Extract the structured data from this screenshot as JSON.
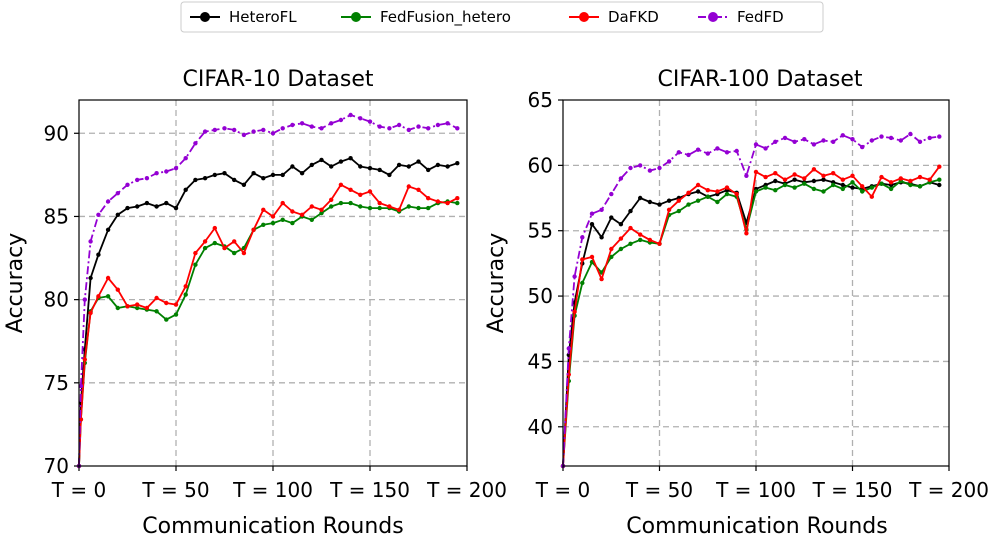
{
  "legend": [
    {
      "name": "HeteroFL",
      "color": "#000000",
      "dash": "solid"
    },
    {
      "name": "FedFusion_hetero",
      "color": "#008000",
      "dash": "solid"
    },
    {
      "name": "DaFKD",
      "color": "#ff0000",
      "dash": "solid"
    },
    {
      "name": "FedFD",
      "color": "#9400d3",
      "dash": "dashdot"
    }
  ],
  "chart_data": [
    {
      "type": "line",
      "title": "CIFAR-10 Dataset",
      "xlabel": "Communication Rounds",
      "ylabel": "Accuracy",
      "xlim": [
        0,
        200
      ],
      "ylim": [
        70,
        92
      ],
      "xticks": [
        0,
        50,
        100,
        150,
        200
      ],
      "xtick_labels": [
        "T = 0",
        "T = 50",
        "T = 100",
        "T = 150",
        "T = 200"
      ],
      "yticks": [
        70,
        75,
        80,
        85,
        90
      ],
      "ytick_labels": [
        "70",
        "75",
        "80",
        "85",
        "90"
      ],
      "grid": true,
      "x": [
        0,
        1,
        3,
        6,
        10,
        15,
        20,
        25,
        30,
        35,
        40,
        45,
        50,
        55,
        60,
        65,
        70,
        75,
        80,
        85,
        90,
        95,
        100,
        105,
        110,
        115,
        120,
        125,
        130,
        135,
        140,
        145,
        150,
        155,
        160,
        165,
        170,
        175,
        180,
        185,
        190,
        195
      ],
      "series": [
        {
          "name": "HeteroFL",
          "values": [
            70.0,
            73.8,
            77.0,
            81.3,
            82.7,
            84.2,
            85.1,
            85.5,
            85.6,
            85.8,
            85.6,
            85.8,
            85.5,
            86.6,
            87.2,
            87.3,
            87.5,
            87.6,
            87.2,
            86.9,
            87.6,
            87.3,
            87.5,
            87.5,
            88.0,
            87.6,
            88.1,
            88.4,
            88.0,
            88.3,
            88.5,
            88.0,
            87.9,
            87.8,
            87.5,
            88.1,
            88.0,
            88.3,
            87.8,
            88.1,
            88.0,
            88.2
          ]
        },
        {
          "name": "FedFusion_hetero",
          "values": [
            70.0,
            72.8,
            76.2,
            79.3,
            80.1,
            80.2,
            79.5,
            79.6,
            79.5,
            79.4,
            79.3,
            78.8,
            79.1,
            80.3,
            82.1,
            83.1,
            83.4,
            83.2,
            82.8,
            83.1,
            84.2,
            84.5,
            84.6,
            84.8,
            84.6,
            85.0,
            84.8,
            85.2,
            85.6,
            85.8,
            85.8,
            85.6,
            85.5,
            85.5,
            85.5,
            85.3,
            85.6,
            85.5,
            85.5,
            85.8,
            85.9,
            85.8
          ]
        },
        {
          "name": "DaFKD",
          "values": [
            70.0,
            72.8,
            76.4,
            79.2,
            80.2,
            81.3,
            80.6,
            79.6,
            79.7,
            79.5,
            80.1,
            79.8,
            79.7,
            80.8,
            82.8,
            83.5,
            84.3,
            83.1,
            83.5,
            82.8,
            84.2,
            85.4,
            85.0,
            85.8,
            85.3,
            85.1,
            85.6,
            85.4,
            86.0,
            86.9,
            86.6,
            86.3,
            86.5,
            85.8,
            85.6,
            85.4,
            86.8,
            86.6,
            86.1,
            85.9,
            85.8,
            86.1
          ]
        },
        {
          "name": "FedFD",
          "values": [
            70.0,
            74.8,
            80.0,
            83.5,
            85.1,
            85.9,
            86.4,
            86.9,
            87.2,
            87.3,
            87.6,
            87.7,
            87.9,
            88.5,
            89.4,
            90.1,
            90.2,
            90.3,
            90.2,
            89.9,
            90.1,
            90.2,
            90.0,
            90.3,
            90.5,
            90.6,
            90.4,
            90.3,
            90.6,
            90.8,
            91.1,
            90.9,
            90.7,
            90.4,
            90.3,
            90.5,
            90.2,
            90.4,
            90.3,
            90.5,
            90.6,
            90.3
          ]
        }
      ]
    },
    {
      "type": "line",
      "title": "CIFAR-100 Dataset",
      "xlabel": "Communication Rounds",
      "ylabel": "Accuracy",
      "xlim": [
        0,
        200
      ],
      "ylim": [
        37,
        65
      ],
      "xticks": [
        0,
        50,
        100,
        150,
        200
      ],
      "xtick_labels": [
        "T = 0",
        "T = 50",
        "T = 100",
        "T = 150",
        "T = 200"
      ],
      "yticks": [
        40,
        45,
        50,
        55,
        60,
        65
      ],
      "ytick_labels": [
        "40",
        "45",
        "50",
        "55",
        "60",
        "65"
      ],
      "grid": true,
      "x": [
        0,
        3,
        6,
        10,
        15,
        20,
        25,
        30,
        35,
        40,
        45,
        50,
        55,
        60,
        65,
        70,
        75,
        80,
        85,
        90,
        95,
        100,
        105,
        110,
        115,
        120,
        125,
        130,
        135,
        140,
        145,
        150,
        155,
        160,
        165,
        170,
        175,
        180,
        185,
        190,
        195
      ],
      "series": [
        {
          "name": "HeteroFL",
          "values": [
            37.0,
            45.5,
            49.5,
            52.5,
            55.5,
            54.5,
            56.0,
            55.5,
            56.5,
            57.5,
            57.2,
            57.0,
            57.3,
            57.5,
            57.8,
            58.0,
            57.6,
            57.8,
            58.1,
            57.9,
            55.6,
            58.2,
            58.5,
            58.8,
            58.6,
            58.9,
            58.7,
            58.8,
            58.9,
            58.7,
            58.5,
            58.3,
            58.2,
            58.4,
            58.6,
            58.5,
            58.7,
            58.6,
            58.4,
            58.7,
            58.5
          ]
        },
        {
          "name": "FedFusion_hetero",
          "values": [
            37.0,
            43.5,
            48.5,
            51.0,
            52.6,
            51.8,
            53.0,
            53.6,
            54.0,
            54.3,
            54.1,
            54.0,
            56.2,
            56.5,
            57.0,
            57.3,
            57.6,
            57.2,
            57.8,
            57.6,
            55.1,
            58.0,
            58.3,
            58.1,
            58.5,
            58.3,
            58.6,
            58.2,
            58.0,
            58.5,
            58.2,
            58.7,
            58.0,
            58.3,
            58.6,
            58.2,
            58.8,
            58.5,
            58.4,
            58.7,
            58.9
          ]
        },
        {
          "name": "DaFKD",
          "values": [
            37.0,
            44.0,
            48.8,
            52.8,
            53.0,
            51.3,
            53.6,
            54.4,
            55.2,
            54.7,
            54.3,
            54.0,
            56.6,
            57.3,
            57.9,
            58.5,
            58.1,
            58.0,
            58.3,
            57.8,
            54.8,
            59.5,
            59.1,
            59.4,
            58.9,
            59.3,
            59.0,
            59.7,
            59.2,
            59.4,
            58.9,
            59.2,
            58.4,
            57.6,
            59.1,
            58.7,
            59.0,
            58.8,
            59.1,
            58.9,
            59.9
          ]
        },
        {
          "name": "FedFD",
          "values": [
            37.0,
            46.0,
            51.5,
            54.5,
            56.3,
            56.6,
            57.8,
            59.0,
            59.8,
            60.0,
            59.6,
            59.8,
            60.3,
            61.0,
            60.8,
            61.2,
            60.9,
            61.3,
            61.0,
            61.1,
            59.2,
            61.6,
            61.3,
            61.8,
            62.1,
            61.8,
            62.0,
            61.6,
            61.9,
            61.8,
            62.3,
            62.0,
            61.4,
            61.9,
            62.2,
            62.1,
            61.9,
            62.4,
            61.8,
            62.1,
            62.2
          ]
        }
      ]
    }
  ]
}
